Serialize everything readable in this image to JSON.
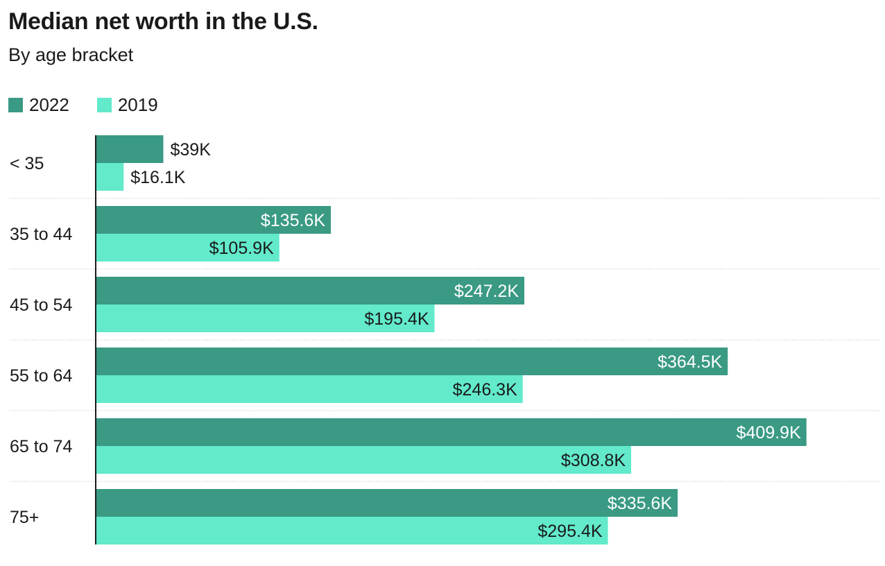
{
  "chart_data": {
    "type": "bar",
    "orientation": "horizontal",
    "title": "Median net worth in the U.S.",
    "subtitle": "By age bracket",
    "categories": [
      "< 35",
      "35 to 44",
      "45 to 54",
      "55 to 64",
      "65 to 74",
      "75+"
    ],
    "series": [
      {
        "name": "2022",
        "color": "#3a9a84",
        "values": [
          39,
          135.6,
          247.2,
          364.5,
          409.9,
          335.6
        ],
        "labels": [
          "$39K",
          "$135.6K",
          "$247.2K",
          "$364.5K",
          "$409.9K",
          "$335.6K"
        ]
      },
      {
        "name": "2019",
        "color": "#62eacb",
        "values": [
          16.1,
          105.9,
          195.4,
          246.3,
          308.8,
          295.4
        ],
        "labels": [
          "$16.1K",
          "$105.9K",
          "$195.4K",
          "$246.3K",
          "$308.8K",
          "$295.4K"
        ]
      }
    ],
    "unit": "thousands of dollars",
    "xlim": [
      0,
      500
    ],
    "xlabel": "",
    "ylabel": "",
    "legend": "top-left",
    "grid": false
  }
}
